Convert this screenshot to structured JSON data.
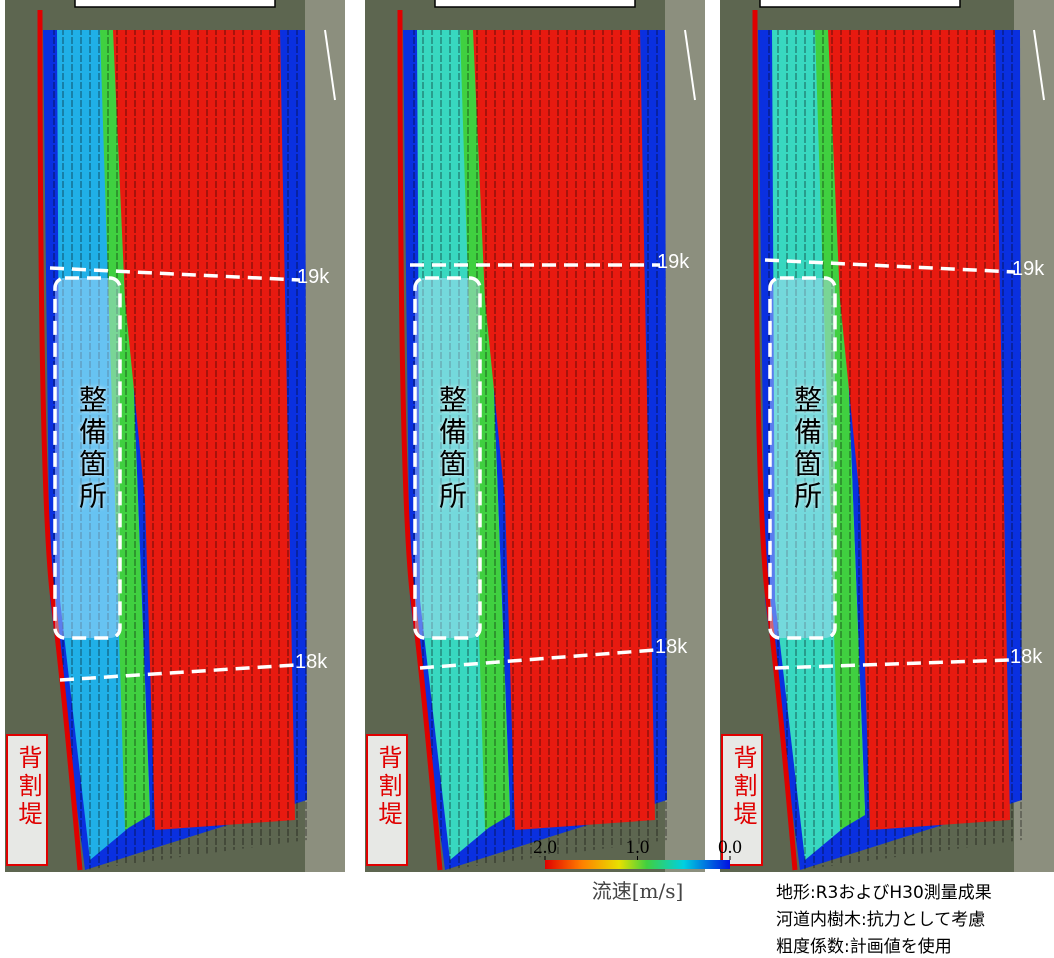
{
  "panels": [
    {
      "k19": "19k",
      "k18": "18k",
      "zone": "整備箇所",
      "levee": "背割堤"
    },
    {
      "k19": "19k",
      "k18": "18k",
      "zone": "整備箇所",
      "levee": "背割堤"
    },
    {
      "k19": "19k",
      "k18": "18k",
      "zone": "整備箇所",
      "levee": "背割堤"
    }
  ],
  "colorbar": {
    "label": "流速[m/s]",
    "ticks": [
      {
        "value": 2,
        "label": "2.0"
      },
      {
        "value": 1,
        "label": "1.0"
      },
      {
        "value": 0,
        "label": "0.0"
      }
    ]
  },
  "notes": [
    "地形:R3およびH30測量成果",
    "河道内樹木:抗力として考慮",
    "粗度係数:計画値を使用"
  ]
}
